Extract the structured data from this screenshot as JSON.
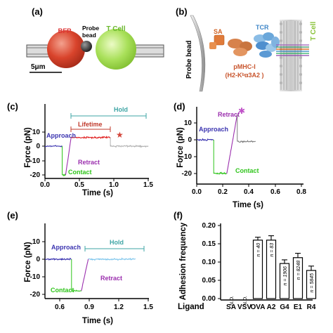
{
  "panel_a": {
    "label": "(a)",
    "bfp_label": "BFP",
    "probe_label_1": "Probe",
    "probe_label_2": "bead",
    "tcell_label": "T Cell",
    "scale_label": "5μm"
  },
  "panel_b": {
    "label": "(b)",
    "probe_bead_label": "Probe bead",
    "sa_label": "SA",
    "pmhc_label": "pMHC-I",
    "h2_label": "(H2-Kᵇα3A2 )",
    "tcr_label": "TCR",
    "tcell_label": "T Cell"
  },
  "chart_data": [
    {
      "id": "c",
      "panel_label": "(c)",
      "type": "line",
      "xlabel": "Time (s)",
      "ylabel": "Force (pN)",
      "xlim": [
        0,
        1.5
      ],
      "ylim": [
        -22,
        20
      ],
      "xticks": [
        0.0,
        0.5,
        1.0,
        1.5
      ],
      "xtick_labels": [
        "0.0",
        "0.5",
        "1.0",
        "1.5"
      ],
      "yticks": [
        -20,
        -10,
        0,
        10
      ],
      "ytick_labels": [
        "-20",
        "-10",
        "0",
        "10"
      ],
      "segments": [
        {
          "name": "Approach",
          "color": "#3b34b0",
          "x": [
            0.0,
            0.25
          ],
          "y": [
            0,
            0
          ]
        },
        {
          "name": "Contact",
          "color": "#2ec41a",
          "x": [
            0.25,
            0.3
          ],
          "y": [
            -20,
            -20
          ]
        },
        {
          "name": "Retract",
          "color": "#9b2fae",
          "x": [
            0.3,
            0.38
          ],
          "y": [
            -20,
            6
          ]
        },
        {
          "name": "Lifetime",
          "color": "#e02020",
          "x": [
            0.38,
            0.95
          ],
          "y": [
            6,
            6
          ]
        },
        {
          "name": "",
          "color": "#b3b3b3",
          "x": [
            0.95,
            1.5
          ],
          "y": [
            0,
            0
          ]
        }
      ],
      "annotations": [
        {
          "text": "Approach",
          "color": "#3b34b0",
          "x": 0.0,
          "y": 4
        },
        {
          "text": "Contact",
          "color": "#2ec41a",
          "x": 0.34,
          "y": -19
        },
        {
          "text": "Retract",
          "color": "#9b2fae",
          "x": 0.5,
          "y": -12
        },
        {
          "text": "Lifetime",
          "color": "#c0392b",
          "x": 0.48,
          "y": 12.5
        },
        {
          "text": "Hold",
          "color": "#3ea5a5",
          "x": 1.0,
          "y": 19.5
        }
      ],
      "star": {
        "x": 1.0,
        "y": 7,
        "color": "#d3453a"
      }
    },
    {
      "id": "d",
      "panel_label": "(d)",
      "type": "line",
      "xlabel": "Time (s)",
      "ylabel": "Force (pN)",
      "xlim": [
        0,
        0.8
      ],
      "ylim": [
        -22,
        20
      ],
      "xticks": [
        0.0,
        0.2,
        0.4,
        0.6,
        0.8
      ],
      "xtick_labels": [
        "0.0",
        "0.2",
        "0.4",
        "0.6",
        "0.8"
      ],
      "yticks": [
        -20,
        -10,
        0,
        10
      ],
      "ytick_labels": [
        "-20",
        "-10",
        "0",
        "10"
      ],
      "segments": [
        {
          "name": "Approach",
          "color": "#3b34b0",
          "x": [
            0.0,
            0.13
          ],
          "y": [
            0,
            0
          ]
        },
        {
          "name": "Contact",
          "color": "#2ec41a",
          "x": [
            0.13,
            0.23
          ],
          "y": [
            -20,
            -20
          ]
        },
        {
          "name": "Retract",
          "color": "#9b2fae",
          "x": [
            0.23,
            0.31
          ],
          "y": [
            -20,
            15
          ]
        },
        {
          "name": "",
          "color": "#7f7f7f",
          "x": [
            0.31,
            0.45
          ],
          "y": [
            -1,
            -1
          ]
        }
      ],
      "annotations": [
        {
          "text": "Approach",
          "color": "#3b34b0",
          "x": 0.0,
          "y": 4
        },
        {
          "text": "Contact",
          "color": "#2ec41a",
          "x": 0.23,
          "y": -19
        },
        {
          "text": "Retract",
          "color": "#9b2fae",
          "x": 0.2,
          "y": 16
        }
      ],
      "star": {
        "x": 0.32,
        "y": 18,
        "color": "#c052c8"
      }
    },
    {
      "id": "e",
      "panel_label": "(e)",
      "type": "line",
      "xlabel": "Time (s)",
      "ylabel": "Force (pN)",
      "xlim": [
        0.45,
        1.5
      ],
      "ylim": [
        -20,
        10
      ],
      "xticks": [
        0.6,
        0.9,
        1.2,
        1.5
      ],
      "xtick_labels": [
        "0.6",
        "0.9",
        "1.2",
        "1.5"
      ],
      "yticks": [
        -20,
        -10,
        0,
        10
      ],
      "ytick_labels": [
        "-20",
        "-10",
        "0",
        "10"
      ],
      "segments": [
        {
          "name": "Approach",
          "color": "#3b34b0",
          "x": [
            0.45,
            0.72
          ],
          "y": [
            0,
            0
          ]
        },
        {
          "name": "Contact",
          "color": "#2ec41a",
          "x": [
            0.72,
            0.82
          ],
          "y": [
            -18,
            -18
          ]
        },
        {
          "name": "Retract",
          "color": "#9b2fae",
          "x": [
            0.82,
            0.89
          ],
          "y": [
            -18,
            0
          ]
        },
        {
          "name": "Hold",
          "color": "#7fc6ec",
          "x": [
            0.89,
            1.37
          ],
          "y": [
            0,
            0
          ]
        }
      ],
      "annotations": [
        {
          "text": "Approach",
          "color": "#3b34b0",
          "x": 0.52,
          "y": 3.5
        },
        {
          "text": "Contact",
          "color": "#2ec41a",
          "x": 0.56,
          "y": -19
        },
        {
          "text": "Retract",
          "color": "#9b2fae",
          "x": 0.95,
          "y": -11
        },
        {
          "text": "Hold",
          "color": "#3ea5a5",
          "x": 1.13,
          "y": 9
        }
      ]
    },
    {
      "id": "f",
      "panel_label": "(f)",
      "type": "bar",
      "ylabel": "Adhesion frequency",
      "row_label": "Ligand",
      "ylim": [
        0,
        0.2
      ],
      "yticks": [
        0.0,
        0.05,
        0.1,
        0.15,
        0.2
      ],
      "ytick_labels": [
        "0.00",
        "0.05",
        "0.10",
        "0.15",
        "0.20"
      ],
      "categories": [
        "SA",
        "VSV",
        "OVA",
        "A2",
        "G4",
        "E1",
        "R4"
      ],
      "values": [
        0,
        0,
        0.16,
        0.16,
        0.096,
        0.112,
        0.077
      ],
      "errors": [
        0,
        0,
        0.008,
        0.012,
        0.01,
        0.012,
        0.012
      ],
      "bar_labels": [
        "N.D.",
        "N.D.",
        "n = 40",
        "n = 83",
        "n = 1906",
        "n = 8248",
        "n = 5845"
      ]
    }
  ]
}
